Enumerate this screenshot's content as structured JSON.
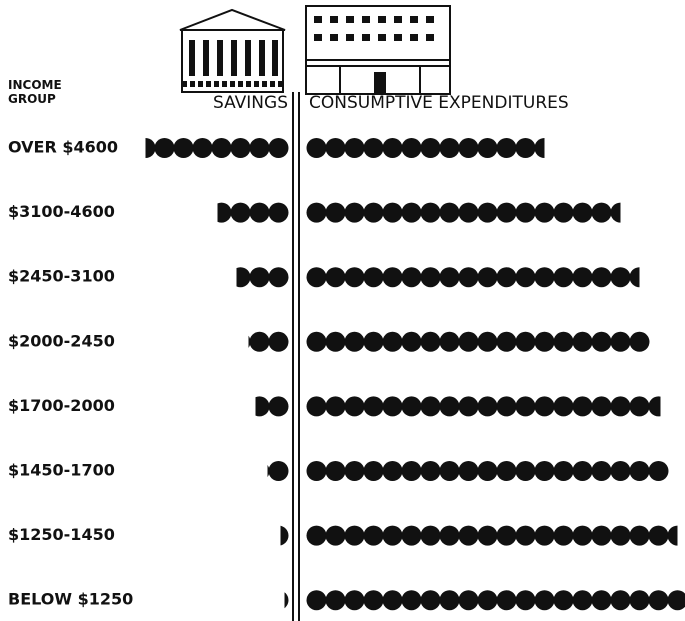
{
  "chart_data": {
    "type": "pictograph",
    "row_header": "INCOME GROUP",
    "categories": [
      "OVER $4600",
      "$3100-4600",
      "$2450-3100",
      "$2000-2450",
      "$1700-2000",
      "$1450-1700",
      "$1250-1450",
      "BELOW $1250"
    ],
    "series": [
      {
        "name": "SAVINGS",
        "color": "#111111",
        "values": [
          7.5,
          3.7,
          2.7,
          2.1,
          1.7,
          1.1,
          0.4,
          0.2
        ]
      },
      {
        "name": "CONSUMPTIVE EXPENDITURES",
        "color": "#111111",
        "values": [
          12.5,
          16.5,
          17.5,
          18,
          18.6,
          19,
          19.5,
          20
        ]
      }
    ]
  }
}
